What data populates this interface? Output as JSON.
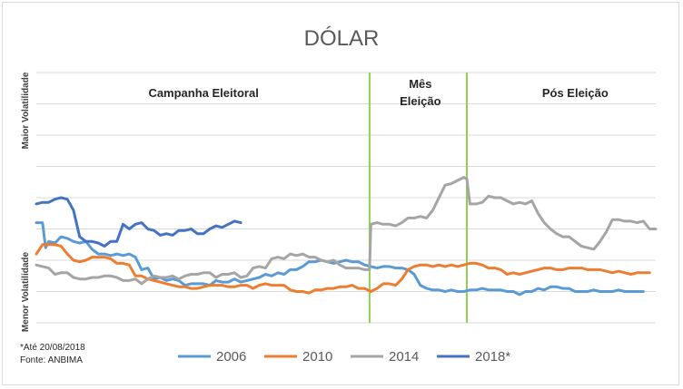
{
  "chart_data": {
    "type": "line",
    "title": "DÓLAR",
    "ylabel_top": "Maior Volatilidade",
    "ylabel_bottom": "Menor Volatilidade",
    "xlim": [
      0,
      100
    ],
    "ylim": [
      0,
      8
    ],
    "grid": true,
    "legend_position": "bottom",
    "phases": [
      {
        "label": "Campanha Eleitoral",
        "x": 27
      },
      {
        "label": "Mês\nEleição",
        "x": 62
      },
      {
        "label": "Pós Eleição",
        "x": 87
      }
    ],
    "dividers": [
      53.8,
      69.5
    ],
    "divider_color": "#92d050",
    "series": [
      {
        "name": "2006",
        "color": "#5b9bd5",
        "x": [
          0,
          1,
          1.5,
          2,
          3,
          4,
          5,
          6,
          7,
          8,
          9,
          10,
          11,
          12,
          13,
          14,
          15,
          16,
          17,
          18,
          19,
          20,
          21,
          22,
          23,
          24,
          25,
          26,
          27,
          28,
          29,
          30,
          31,
          32,
          33,
          34,
          35,
          36,
          37,
          38,
          39,
          40,
          41,
          42,
          43,
          44,
          45,
          46,
          47,
          48,
          49,
          50,
          51,
          52,
          53,
          54,
          55,
          56,
          57,
          58,
          59,
          60,
          61,
          62,
          63,
          64,
          65,
          66,
          67,
          68,
          69,
          70,
          71,
          72,
          73,
          74,
          75,
          76,
          77,
          78,
          79,
          80,
          81,
          82,
          83,
          84,
          85,
          86,
          87,
          88,
          89,
          90,
          91,
          92,
          93,
          94,
          95,
          96,
          97,
          98
        ],
        "y": [
          3.2,
          3.2,
          2.4,
          2.6,
          2.55,
          2.75,
          2.7,
          2.6,
          2.55,
          2.6,
          2.35,
          2.2,
          2.2,
          2.15,
          2.2,
          2.15,
          2.2,
          2.1,
          1.7,
          1.75,
          1.4,
          1.45,
          1.35,
          1.4,
          1.35,
          1.2,
          1.25,
          1.25,
          1.25,
          1.2,
          1.35,
          1.3,
          1.3,
          1.4,
          1.3,
          1.35,
          1.4,
          1.45,
          1.55,
          1.5,
          1.6,
          1.55,
          1.7,
          1.7,
          1.8,
          1.95,
          1.95,
          2.0,
          1.95,
          1.9,
          1.95,
          2.0,
          1.95,
          1.95,
          1.85,
          1.8,
          1.75,
          1.8,
          1.8,
          1.75,
          1.75,
          1.7,
          1.55,
          1.2,
          1.1,
          1.05,
          1.05,
          1.0,
          1.05,
          1.0,
          1.0,
          1.05,
          1.05,
          1.1,
          1.05,
          1.05,
          1.05,
          1.0,
          1.0,
          0.9,
          1.0,
          1.0,
          1.1,
          1.05,
          1.15,
          1.15,
          1.1,
          1.1,
          1.0,
          1.0,
          1.0,
          1.05,
          1.0,
          1.0,
          1.0,
          1.05,
          1.0,
          1.0,
          1.0,
          1.0
        ]
      },
      {
        "name": "2010",
        "color": "#ed7d31",
        "x": [
          0,
          1,
          2,
          3,
          4,
          5,
          6,
          7,
          8,
          9,
          10,
          11,
          12,
          13,
          14,
          15,
          16,
          17,
          18,
          19,
          20,
          21,
          22,
          23,
          24,
          25,
          26,
          27,
          28,
          29,
          30,
          31,
          32,
          33,
          34,
          35,
          36,
          37,
          38,
          39,
          40,
          41,
          42,
          43,
          44,
          45,
          46,
          47,
          48,
          49,
          50,
          51,
          52,
          53,
          54,
          55,
          56,
          57,
          58,
          59,
          60,
          61,
          62,
          63,
          64,
          65,
          66,
          67,
          68,
          69,
          70,
          71,
          72,
          73,
          74,
          75,
          76,
          77,
          78,
          79,
          80,
          81,
          82,
          83,
          84,
          85,
          86,
          87,
          88,
          89,
          90,
          91,
          92,
          93,
          94,
          95,
          96,
          97,
          98,
          99
        ],
        "y": [
          2.2,
          2.5,
          2.5,
          2.5,
          2.45,
          2.2,
          2.0,
          1.95,
          2.0,
          2.1,
          2.1,
          2.1,
          2.05,
          1.9,
          1.9,
          1.85,
          1.5,
          1.5,
          1.4,
          1.35,
          1.3,
          1.25,
          1.2,
          1.15,
          1.15,
          1.1,
          1.1,
          1.15,
          1.2,
          1.2,
          1.2,
          1.15,
          1.15,
          1.2,
          1.2,
          1.1,
          1.2,
          1.25,
          1.2,
          1.2,
          1.2,
          1.05,
          1.0,
          1.0,
          0.95,
          1.05,
          1.05,
          1.1,
          1.1,
          1.15,
          1.15,
          1.2,
          1.1,
          1.1,
          1.0,
          1.1,
          1.25,
          1.25,
          1.2,
          1.4,
          1.7,
          1.8,
          1.85,
          1.85,
          1.8,
          1.85,
          1.8,
          1.85,
          1.8,
          1.85,
          1.9,
          1.9,
          1.85,
          1.75,
          1.75,
          1.7,
          1.55,
          1.6,
          1.55,
          1.6,
          1.65,
          1.7,
          1.75,
          1.75,
          1.7,
          1.7,
          1.75,
          1.75,
          1.75,
          1.7,
          1.7,
          1.7,
          1.65,
          1.6,
          1.65,
          1.6,
          1.55,
          1.6,
          1.6,
          1.6
        ]
      },
      {
        "name": "2014",
        "color": "#a5a5a5",
        "x": [
          0,
          1,
          2,
          3,
          4,
          5,
          6,
          7,
          8,
          9,
          10,
          11,
          12,
          13,
          14,
          15,
          16,
          17,
          18,
          19,
          20,
          21,
          22,
          23,
          24,
          25,
          26,
          27,
          28,
          29,
          30,
          31,
          32,
          33,
          34,
          35,
          36,
          37,
          38,
          39,
          40,
          41,
          42,
          43,
          44,
          45,
          46,
          47,
          48,
          49,
          50,
          51,
          52,
          53,
          53.8,
          54,
          55,
          56,
          57,
          58,
          59,
          60,
          61,
          62,
          63,
          64,
          65,
          66,
          67,
          68,
          69,
          69.5,
          70,
          71,
          72,
          73,
          74,
          75,
          76,
          77,
          78,
          79,
          80,
          81,
          82,
          83,
          84,
          85,
          86,
          87,
          88,
          89,
          90,
          91,
          92,
          93,
          94,
          95,
          96,
          97,
          98,
          99,
          100
        ],
        "y": [
          1.85,
          1.8,
          1.75,
          1.55,
          1.6,
          1.6,
          1.45,
          1.4,
          1.4,
          1.45,
          1.45,
          1.5,
          1.5,
          1.45,
          1.35,
          1.35,
          1.4,
          1.25,
          1.4,
          1.5,
          1.45,
          1.45,
          1.5,
          1.4,
          1.5,
          1.55,
          1.55,
          1.6,
          1.6,
          1.45,
          1.55,
          1.55,
          1.6,
          1.45,
          1.5,
          1.75,
          1.8,
          1.75,
          2.05,
          2.1,
          2.05,
          2.2,
          2.15,
          2.2,
          2.1,
          2.1,
          2.0,
          1.95,
          2.0,
          1.85,
          1.75,
          1.75,
          1.75,
          1.7,
          1.7,
          3.15,
          3.2,
          3.15,
          3.15,
          3.1,
          3.2,
          3.35,
          3.35,
          3.4,
          3.35,
          3.6,
          4.0,
          4.4,
          4.45,
          4.55,
          4.65,
          4.6,
          3.8,
          3.8,
          3.85,
          4.05,
          4.0,
          4.0,
          3.9,
          3.8,
          3.85,
          3.8,
          3.9,
          3.5,
          3.2,
          3.0,
          2.85,
          2.75,
          2.75,
          2.6,
          2.45,
          2.4,
          2.35,
          2.6,
          2.9,
          3.3,
          3.3,
          3.25,
          3.25,
          3.2,
          3.25,
          3.0,
          3.0
        ]
      },
      {
        "name": "2018*",
        "color": "#4472c4",
        "x": [
          0,
          1,
          2,
          3,
          4,
          5,
          6,
          7,
          8,
          9,
          10,
          11,
          12,
          13,
          14,
          15,
          16,
          17,
          18,
          19,
          20,
          21,
          22,
          23,
          24,
          25,
          26,
          27,
          28,
          29,
          30,
          31,
          32,
          33
        ],
        "y": [
          3.8,
          3.85,
          3.85,
          3.95,
          4.0,
          3.95,
          3.6,
          2.75,
          2.6,
          2.6,
          2.55,
          2.45,
          2.6,
          2.6,
          3.15,
          3.0,
          3.15,
          3.2,
          3.0,
          2.95,
          2.8,
          2.85,
          2.8,
          2.95,
          2.95,
          3.0,
          2.85,
          2.85,
          3.0,
          3.1,
          3.05,
          3.15,
          3.25,
          3.2
        ]
      }
    ]
  },
  "footnote": {
    "line1": "*Até 20/08/2018",
    "line2": "Fonte: ANBIMA"
  }
}
